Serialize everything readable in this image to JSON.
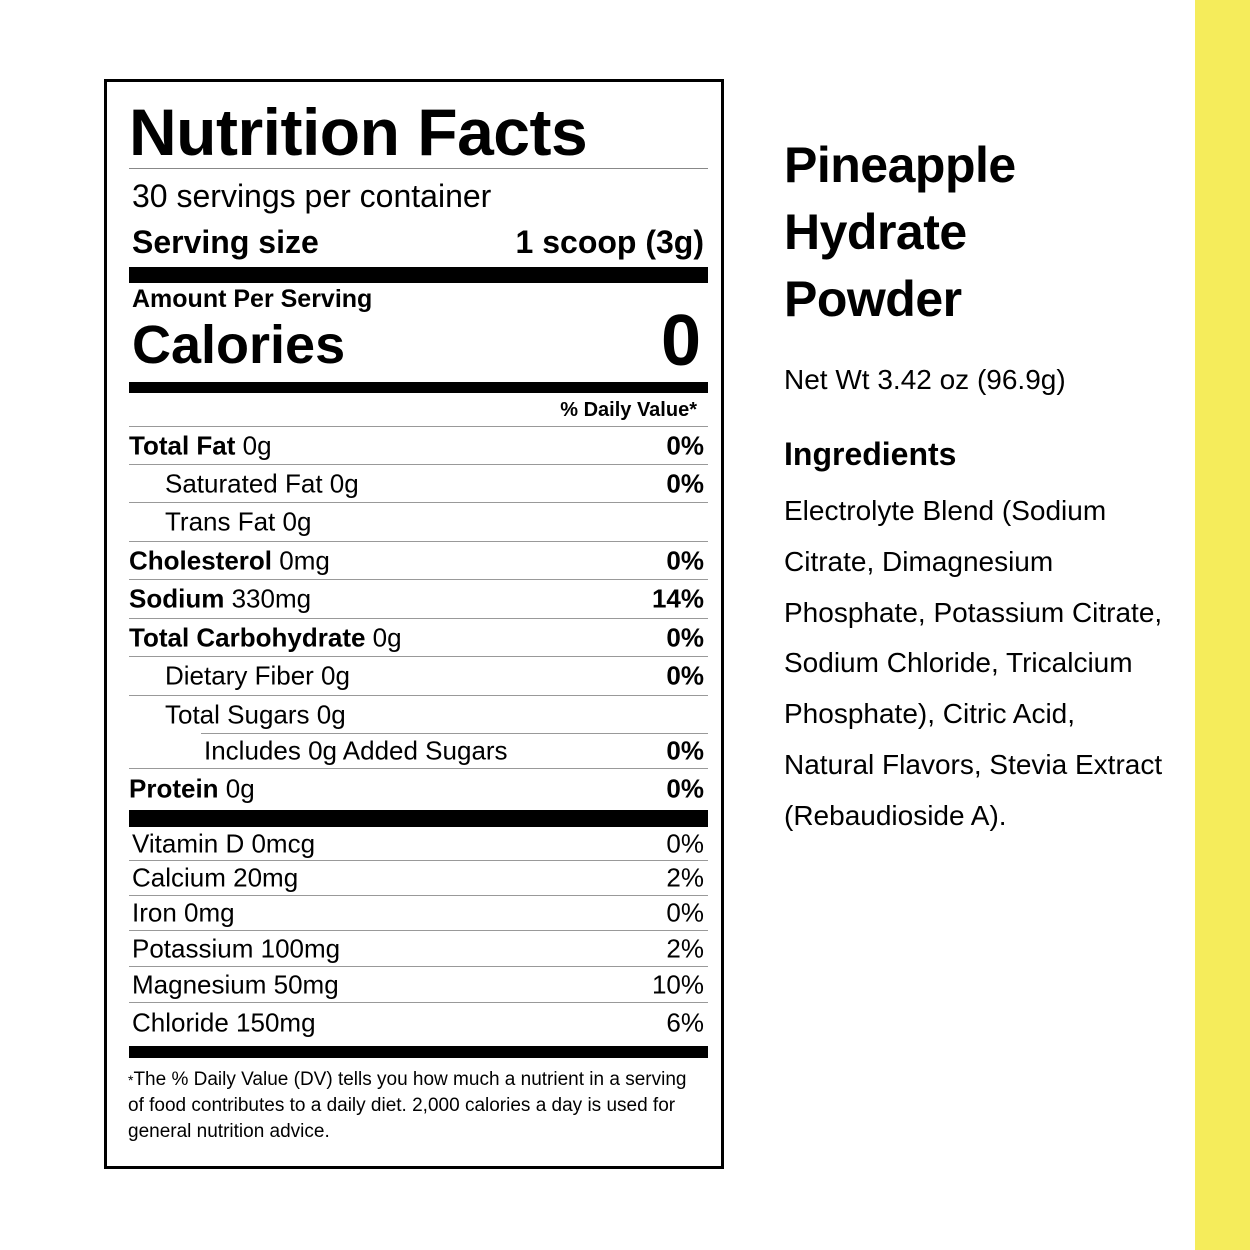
{
  "label": {
    "title": "Nutrition Facts",
    "servings": "30 servings per container",
    "serving_size_label": "Serving size",
    "serving_size_value": "1 scoop (3g)",
    "amount_per_serving": "Amount Per Serving",
    "calories_label": "Calories",
    "calories_value": "0",
    "daily_value_header": "% Daily Value*",
    "nutrients": [
      {
        "bold": "Total Fat",
        "amount": " 0g",
        "pct": "0%",
        "indent": 0
      },
      {
        "bold": "",
        "amount": "Saturated Fat 0g",
        "pct": "0%",
        "indent": 1
      },
      {
        "bold": "",
        "amount": "Trans Fat 0g",
        "pct": "",
        "indent": 1
      },
      {
        "bold": "Cholesterol",
        "amount": " 0mg",
        "pct": "0%",
        "indent": 0
      },
      {
        "bold": "Sodium",
        "amount": " 330mg",
        "pct": "14%",
        "indent": 0
      },
      {
        "bold": "Total Carbohydrate",
        "amount": " 0g",
        "pct": "0%",
        "indent": 0
      },
      {
        "bold": "",
        "amount": "Dietary Fiber 0g",
        "pct": "0%",
        "indent": 1
      },
      {
        "bold": "",
        "amount": "Total Sugars 0g",
        "pct": "",
        "indent": 1
      },
      {
        "bold": "",
        "amount": "Includes 0g Added Sugars",
        "pct": "0%",
        "indent": 2
      },
      {
        "bold": "Protein",
        "amount": " 0g",
        "pct": "0%",
        "indent": 0
      }
    ],
    "vitamins": [
      {
        "name": "Vitamin D 0mcg",
        "pct": "0%"
      },
      {
        "name": "Calcium 20mg",
        "pct": "2%"
      },
      {
        "name": "Iron 0mg",
        "pct": "0%"
      },
      {
        "name": "Potassium 100mg",
        "pct": "2%"
      },
      {
        "name": "Magnesium 50mg",
        "pct": "10%"
      },
      {
        "name": "Chloride 150mg",
        "pct": "6%"
      }
    ],
    "footnote_star": "*",
    "footnote": "The % Daily Value (DV) tells you how much a nutrient in a serving of food contributes to a daily diet. 2,000 calories a day is used for general nutrition advice."
  },
  "product": {
    "title_lines": [
      "Pineapple",
      "Hydrate",
      "Powder"
    ],
    "net_weight": "Net Wt 3.42 oz (96.9g)",
    "ingredients_heading": "Ingredients",
    "ingredients": "Electrolyte Blend (Sodium Citrate, Dimagnesium Phosphate, Potassium Citrate, Sodium Chloride, Tricalcium Phosphate), Citric Acid, Natural Flavors, Stevia Extract (Rebaudioside A)."
  },
  "colors": {
    "accent_strip": "#f5ec5b",
    "text": "#000000"
  }
}
